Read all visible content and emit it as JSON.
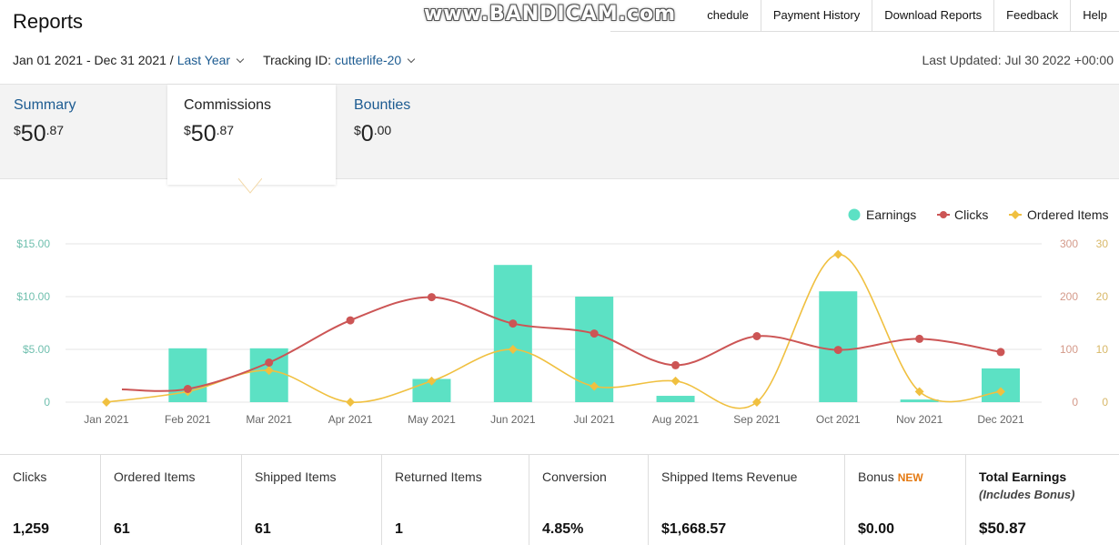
{
  "header": {
    "title": "Reports",
    "nav": [
      "chedule",
      "Payment History",
      "Download Reports",
      "Feedback",
      "Help"
    ],
    "watermark": "www.BANDICAM.com"
  },
  "filters": {
    "date_range": "Jan 01 2021 - Dec 31 2021 /",
    "period": "Last Year",
    "tracking_label": "Tracking ID:",
    "tracking_id": "cutterlife-20",
    "last_updated": "Last Updated: Jul 30 2022 +00:00"
  },
  "tabs": [
    {
      "label": "Summary",
      "currency": "$",
      "whole": "50",
      "cents": ".87"
    },
    {
      "label": "Commissions",
      "currency": "$",
      "whole": "50",
      "cents": ".87"
    },
    {
      "label": "Bounties",
      "currency": "$",
      "whole": "0",
      "cents": ".00"
    }
  ],
  "chart_data": {
    "type": "bar",
    "categories": [
      "Jan 2021",
      "Feb 2021",
      "Mar 2021",
      "Apr 2021",
      "May 2021",
      "Jun 2021",
      "Jul 2021",
      "Aug 2021",
      "Sep 2021",
      "Oct 2021",
      "Nov 2021",
      "Dec 2021"
    ],
    "series": [
      {
        "name": "Earnings",
        "type": "bar",
        "axis": "left",
        "color": "#5ce1c4",
        "values": [
          0,
          5.1,
          5.1,
          0,
          2.2,
          13.0,
          10.0,
          0.6,
          0,
          10.5,
          0.25,
          3.2
        ]
      },
      {
        "name": "Clicks",
        "type": "line",
        "axis": "right-outer",
        "color": "#cc5555",
        "values": [
          null,
          25,
          75,
          155,
          199,
          149,
          130,
          70,
          125,
          99,
          120,
          95
        ]
      },
      {
        "name": "Ordered Items",
        "type": "line",
        "axis": "right-inner",
        "color": "#f0c040",
        "values": [
          0,
          2,
          6,
          0,
          4,
          10,
          3,
          4,
          0,
          28,
          2,
          2
        ]
      }
    ],
    "left_axis": {
      "ticks": [
        "$15.00",
        "$10.00",
        "$5.00",
        "0"
      ],
      "range": [
        0,
        15
      ]
    },
    "right_outer_axis": {
      "ticks": [
        "300",
        "200",
        "100",
        "0"
      ],
      "range": [
        0,
        300
      ]
    },
    "right_inner_axis": {
      "ticks": [
        "30",
        "20",
        "10",
        "0"
      ],
      "range": [
        0,
        30
      ]
    },
    "legend": [
      "Earnings",
      "Clicks",
      "Ordered Items"
    ],
    "legend_position": "top-right",
    "grid": true
  },
  "stats": [
    {
      "label": "Clicks",
      "value": "1,259"
    },
    {
      "label": "Ordered Items",
      "value": "61"
    },
    {
      "label": "Shipped Items",
      "value": "61"
    },
    {
      "label": "Returned Items",
      "value": "1"
    },
    {
      "label": "Conversion",
      "value": "4.85%"
    },
    {
      "label": "Shipped Items Revenue",
      "value": "$1,668.57"
    },
    {
      "label": "Bonus",
      "badge": "NEW",
      "value": "$0.00"
    },
    {
      "label": "Total Earnings",
      "sub": "(Includes Bonus)",
      "value": "$50.87"
    }
  ]
}
